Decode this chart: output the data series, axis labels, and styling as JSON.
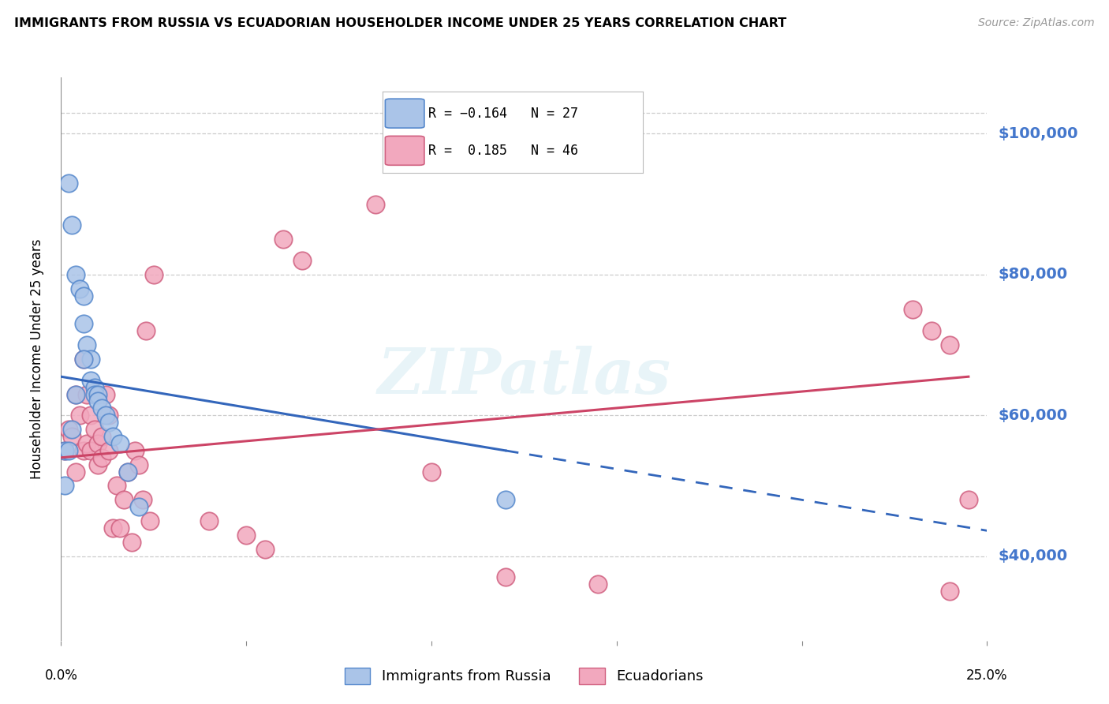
{
  "title": "IMMIGRANTS FROM RUSSIA VS ECUADORIAN HOUSEHOLDER INCOME UNDER 25 YEARS CORRELATION CHART",
  "source": "Source: ZipAtlas.com",
  "ylabel": "Householder Income Under 25 years",
  "ytick_labels": [
    "$40,000",
    "$60,000",
    "$80,000",
    "$100,000"
  ],
  "ytick_values": [
    40000,
    60000,
    80000,
    100000
  ],
  "xlim": [
    0.0,
    0.25
  ],
  "ylim": [
    28000,
    108000
  ],
  "russia_color": "#aac4e8",
  "ecuador_color": "#f2a8be",
  "russia_edge": "#5588cc",
  "ecuador_edge": "#d06080",
  "trendline_russia": "#3366bb",
  "trendline_ecuador": "#cc4466",
  "background_color": "#ffffff",
  "grid_color": "#cccccc",
  "ytick_color": "#4477cc",
  "russia_x": [
    0.001,
    0.002,
    0.003,
    0.004,
    0.005,
    0.006,
    0.006,
    0.007,
    0.008,
    0.008,
    0.009,
    0.009,
    0.01,
    0.01,
    0.011,
    0.012,
    0.013,
    0.014,
    0.016,
    0.018,
    0.021,
    0.001,
    0.002,
    0.003,
    0.004,
    0.006,
    0.12
  ],
  "russia_y": [
    55000,
    93000,
    87000,
    80000,
    78000,
    77000,
    73000,
    70000,
    68000,
    65000,
    64000,
    63000,
    63000,
    62000,
    61000,
    60000,
    59000,
    57000,
    56000,
    52000,
    47000,
    50000,
    55000,
    58000,
    63000,
    68000,
    48000
  ],
  "ecuador_x": [
    0.001,
    0.002,
    0.003,
    0.004,
    0.004,
    0.005,
    0.006,
    0.006,
    0.007,
    0.007,
    0.008,
    0.008,
    0.009,
    0.01,
    0.01,
    0.011,
    0.011,
    0.012,
    0.013,
    0.013,
    0.014,
    0.015,
    0.016,
    0.017,
    0.018,
    0.019,
    0.02,
    0.021,
    0.022,
    0.023,
    0.024,
    0.025,
    0.04,
    0.05,
    0.055,
    0.06,
    0.065,
    0.085,
    0.1,
    0.12,
    0.145,
    0.23,
    0.235,
    0.24,
    0.24,
    0.245
  ],
  "ecuador_y": [
    55000,
    58000,
    57000,
    52000,
    63000,
    60000,
    55000,
    68000,
    63000,
    56000,
    60000,
    55000,
    58000,
    53000,
    56000,
    57000,
    54000,
    63000,
    55000,
    60000,
    44000,
    50000,
    44000,
    48000,
    52000,
    42000,
    55000,
    53000,
    48000,
    72000,
    45000,
    80000,
    45000,
    43000,
    41000,
    85000,
    82000,
    90000,
    52000,
    37000,
    36000,
    75000,
    72000,
    70000,
    35000,
    48000
  ]
}
